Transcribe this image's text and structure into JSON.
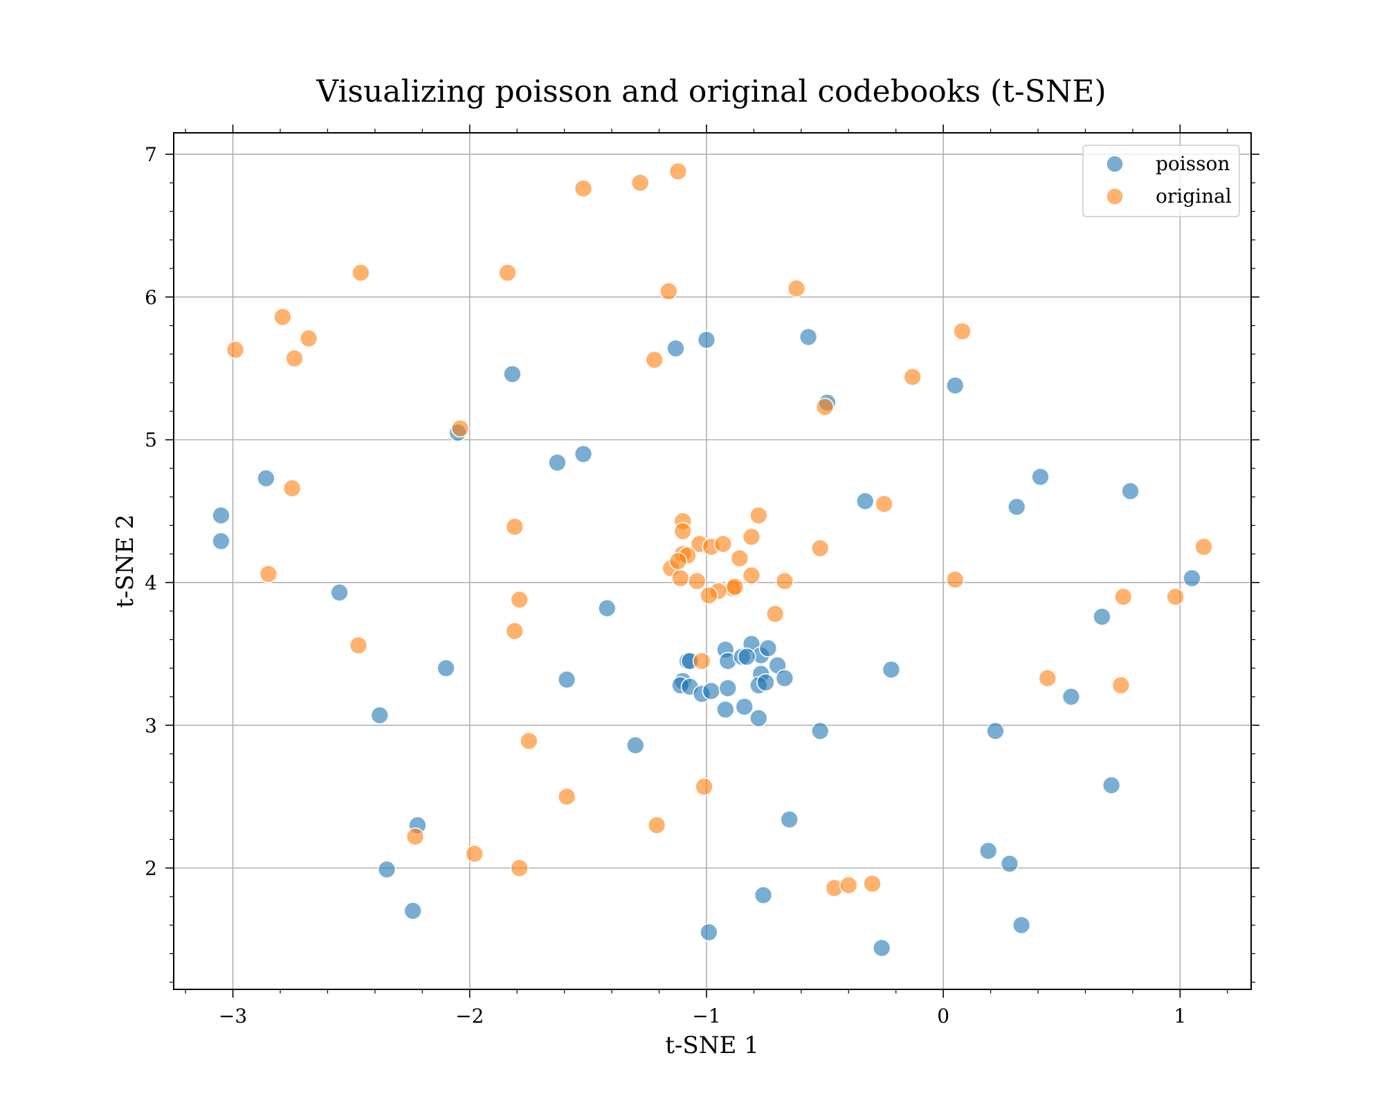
{
  "chart_data": {
    "type": "scatter",
    "title": "Visualizing poisson and original codebooks (t-SNE)",
    "xlabel": "t-SNE 1",
    "ylabel": "t-SNE 2",
    "xlim": [
      -3.25,
      1.3
    ],
    "ylim": [
      1.15,
      7.15
    ],
    "xticks": [
      -3,
      -2,
      -1,
      0,
      1
    ],
    "xtick_labels": [
      "−3",
      "−2",
      "−1",
      "0",
      "1"
    ],
    "yticks": [
      2,
      3,
      4,
      5,
      6,
      7
    ],
    "ytick_labels": [
      "2",
      "3",
      "4",
      "5",
      "6",
      "7"
    ],
    "grid": true,
    "legend_position": "top-right",
    "series": [
      {
        "name": "poisson",
        "color": "#1f77b4",
        "points": [
          [
            -3.05,
            4.47
          ],
          [
            -3.05,
            4.29
          ],
          [
            -2.86,
            4.73
          ],
          [
            -2.55,
            3.93
          ],
          [
            -2.38,
            3.07
          ],
          [
            -2.35,
            1.99
          ],
          [
            -2.24,
            1.7
          ],
          [
            -2.22,
            2.3
          ],
          [
            -2.1,
            3.4
          ],
          [
            -2.05,
            5.05
          ],
          [
            -1.82,
            5.46
          ],
          [
            -1.63,
            4.84
          ],
          [
            -1.59,
            3.32
          ],
          [
            -1.52,
            4.9
          ],
          [
            -1.42,
            3.82
          ],
          [
            -1.3,
            2.86
          ],
          [
            -1.13,
            5.64
          ],
          [
            -1.0,
            5.7
          ],
          [
            -0.57,
            5.72
          ],
          [
            -0.49,
            5.26
          ],
          [
            -0.33,
            4.57
          ],
          [
            -0.22,
            3.39
          ],
          [
            -0.52,
            2.96
          ],
          [
            -0.65,
            2.34
          ],
          [
            -0.76,
            1.81
          ],
          [
            -0.99,
            1.55
          ],
          [
            -0.26,
            1.44
          ],
          [
            0.05,
            5.38
          ],
          [
            0.31,
            4.53
          ],
          [
            0.41,
            4.74
          ],
          [
            0.79,
            4.64
          ],
          [
            0.67,
            3.76
          ],
          [
            1.05,
            4.03
          ],
          [
            0.54,
            3.2
          ],
          [
            0.22,
            2.96
          ],
          [
            0.71,
            2.58
          ],
          [
            0.19,
            2.12
          ],
          [
            0.28,
            2.03
          ],
          [
            0.33,
            1.6
          ],
          [
            -1.08,
            3.45
          ],
          [
            -1.07,
            3.45
          ],
          [
            -1.1,
            3.31
          ],
          [
            -1.11,
            3.28
          ],
          [
            -1.07,
            3.27
          ],
          [
            -1.02,
            3.22
          ],
          [
            -0.98,
            3.24
          ],
          [
            -0.92,
            3.53
          ],
          [
            -0.91,
            3.45
          ],
          [
            -0.81,
            3.57
          ],
          [
            -0.77,
            3.49
          ],
          [
            -0.74,
            3.54
          ],
          [
            -0.85,
            3.48
          ],
          [
            -0.83,
            3.48
          ],
          [
            -0.7,
            3.42
          ],
          [
            -0.67,
            3.33
          ],
          [
            -0.77,
            3.36
          ],
          [
            -0.78,
            3.28
          ],
          [
            -0.75,
            3.3
          ],
          [
            -0.91,
            3.26
          ],
          [
            -0.92,
            3.11
          ],
          [
            -0.84,
            3.13
          ],
          [
            -0.78,
            3.05
          ]
        ]
      },
      {
        "name": "original",
        "color": "#ff7f0e",
        "points": [
          [
            -2.99,
            5.63
          ],
          [
            -2.79,
            5.86
          ],
          [
            -2.68,
            5.71
          ],
          [
            -2.74,
            5.57
          ],
          [
            -2.46,
            6.17
          ],
          [
            -2.75,
            4.66
          ],
          [
            -2.85,
            4.06
          ],
          [
            -2.47,
            3.56
          ],
          [
            -2.04,
            5.08
          ],
          [
            -1.84,
            6.17
          ],
          [
            -1.52,
            6.76
          ],
          [
            -1.28,
            6.8
          ],
          [
            -1.12,
            6.88
          ],
          [
            -1.16,
            6.04
          ],
          [
            -1.22,
            5.56
          ],
          [
            -0.62,
            6.06
          ],
          [
            0.08,
            5.76
          ],
          [
            -0.13,
            5.44
          ],
          [
            -0.5,
            5.23
          ],
          [
            -1.81,
            4.39
          ],
          [
            -1.79,
            3.88
          ],
          [
            -1.81,
            3.66
          ],
          [
            -1.75,
            2.89
          ],
          [
            -1.59,
            2.5
          ],
          [
            -1.21,
            2.3
          ],
          [
            -2.23,
            2.22
          ],
          [
            -1.98,
            2.1
          ],
          [
            -1.79,
            2.0
          ],
          [
            -1.01,
            2.57
          ],
          [
            -1.02,
            3.45
          ],
          [
            -0.52,
            4.24
          ],
          [
            -0.25,
            4.55
          ],
          [
            -0.78,
            4.47
          ],
          [
            -0.81,
            4.32
          ],
          [
            -0.67,
            4.01
          ],
          [
            -0.71,
            3.78
          ],
          [
            0.05,
            4.02
          ],
          [
            0.44,
            3.33
          ],
          [
            0.76,
            3.9
          ],
          [
            0.75,
            3.28
          ],
          [
            0.98,
            3.9
          ],
          [
            1.1,
            4.25
          ],
          [
            -0.46,
            1.86
          ],
          [
            -0.4,
            1.88
          ],
          [
            -0.3,
            1.89
          ],
          [
            -1.1,
            4.43
          ],
          [
            -1.1,
            4.36
          ],
          [
            -1.03,
            4.27
          ],
          [
            -0.98,
            4.25
          ],
          [
            -0.93,
            4.27
          ],
          [
            -0.86,
            4.17
          ],
          [
            -1.1,
            4.2
          ],
          [
            -1.08,
            4.19
          ],
          [
            -1.15,
            4.1
          ],
          [
            -1.12,
            4.15
          ],
          [
            -1.11,
            4.03
          ],
          [
            -1.04,
            4.01
          ],
          [
            -0.81,
            4.05
          ],
          [
            -0.89,
            3.96
          ],
          [
            -0.95,
            3.94
          ],
          [
            -0.99,
            3.91
          ],
          [
            -0.88,
            3.97
          ]
        ]
      }
    ]
  }
}
